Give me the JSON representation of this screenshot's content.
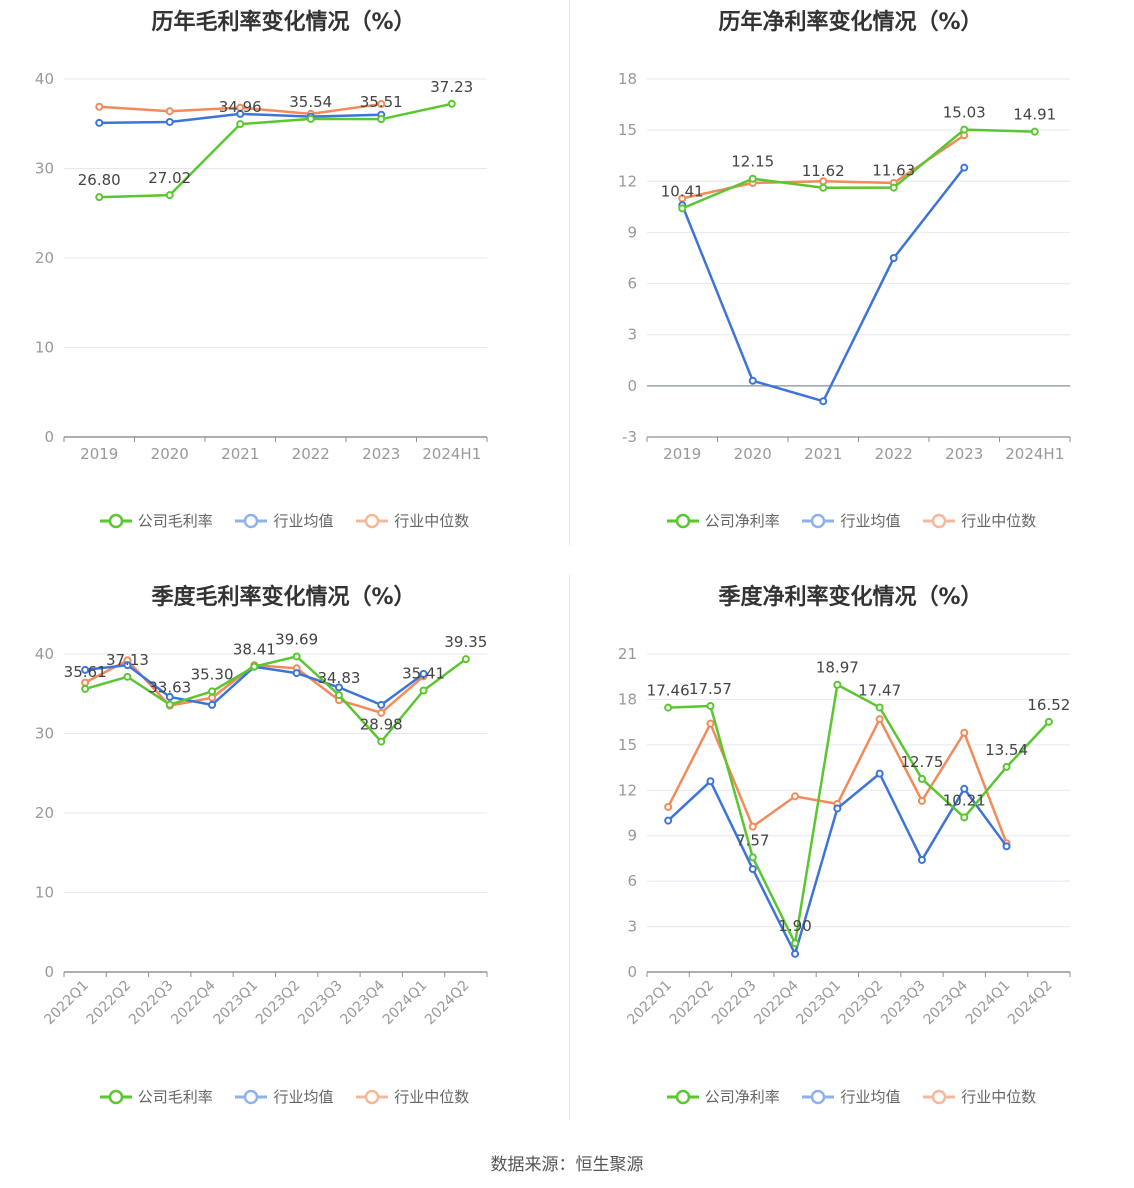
{
  "colors": {
    "company": "#5ac630",
    "avg": "#3d74d9",
    "median": "#f28a5a",
    "grid": "#e6e8f0",
    "axis": "#8a8f99",
    "label": "#999999",
    "value": "#444444"
  },
  "legend_labels": {
    "median": "行业中位数",
    "avg": "行业均值"
  },
  "source": "数据来源：恒生聚源",
  "chart_data": [
    {
      "type": "line",
      "title": "历年毛利率变化情况（%）",
      "categories": [
        "2019",
        "2020",
        "2021",
        "2022",
        "2023",
        "2024H1"
      ],
      "ylim": [
        0,
        40
      ],
      "yticks": [
        0,
        10,
        20,
        30,
        40
      ],
      "xtick_rotate": false,
      "company_label": "公司毛利率",
      "series": [
        {
          "key": "company",
          "name": "公司毛利率",
          "values": [
            26.8,
            27.02,
            34.96,
            35.54,
            35.51,
            37.23
          ],
          "labels": [
            "26.80",
            "27.02",
            "34.96",
            "35.54",
            "35.51",
            "37.23"
          ]
        },
        {
          "key": "avg",
          "name": "行业均值",
          "values": [
            35.1,
            35.2,
            36.1,
            35.8,
            36.0,
            null
          ]
        },
        {
          "key": "median",
          "name": "行业中位数",
          "values": [
            36.9,
            36.4,
            36.8,
            36.1,
            37.2,
            null
          ]
        }
      ]
    },
    {
      "type": "line",
      "title": "历年净利率变化情况（%）",
      "categories": [
        "2019",
        "2020",
        "2021",
        "2022",
        "2023",
        "2024H1"
      ],
      "ylim": [
        -3,
        18
      ],
      "yticks": [
        -3,
        0,
        3,
        6,
        9,
        12,
        15,
        18
      ],
      "xtick_rotate": false,
      "company_label": "公司净利率",
      "series": [
        {
          "key": "company",
          "name": "公司净利率",
          "values": [
            10.41,
            12.15,
            11.62,
            11.63,
            15.03,
            14.91
          ],
          "labels": [
            "10.41",
            "12.15",
            "11.62",
            "11.63",
            "15.03",
            "14.91"
          ]
        },
        {
          "key": "avg",
          "name": "行业均值",
          "values": [
            10.6,
            0.3,
            -0.9,
            7.5,
            12.8,
            null
          ]
        },
        {
          "key": "median",
          "name": "行业中位数",
          "values": [
            11.0,
            11.9,
            12.0,
            11.9,
            14.7,
            null
          ]
        }
      ]
    },
    {
      "type": "line",
      "title": "季度毛利率变化情况（%）",
      "categories": [
        "2022Q1",
        "2022Q2",
        "2022Q3",
        "2022Q4",
        "2023Q1",
        "2023Q2",
        "2023Q3",
        "2023Q4",
        "2024Q1",
        "2024Q2"
      ],
      "ylim": [
        0,
        40
      ],
      "yticks": [
        0,
        10,
        20,
        30,
        40
      ],
      "xtick_rotate": true,
      "company_label": "公司毛利率",
      "series": [
        {
          "key": "company",
          "name": "公司毛利率",
          "values": [
            35.61,
            37.13,
            33.63,
            35.3,
            38.41,
            39.69,
            34.83,
            28.98,
            35.41,
            39.35
          ],
          "labels": [
            "35.61",
            "37.13",
            "33.63",
            "35.30",
            "38.41",
            "39.69",
            "34.83",
            "28.98",
            "35.41",
            "39.35"
          ]
        },
        {
          "key": "avg",
          "name": "行业均值",
          "values": [
            38.0,
            38.6,
            34.6,
            33.6,
            38.4,
            37.6,
            35.8,
            33.6,
            37.5,
            null
          ]
        },
        {
          "key": "median",
          "name": "行业中位数",
          "values": [
            36.4,
            39.2,
            33.5,
            34.5,
            38.6,
            38.2,
            34.2,
            32.6,
            37.2,
            null
          ]
        }
      ]
    },
    {
      "type": "line",
      "title": "季度净利率变化情况（%）",
      "categories": [
        "2022Q1",
        "2022Q2",
        "2022Q3",
        "2022Q4",
        "2023Q1",
        "2023Q2",
        "2023Q3",
        "2023Q4",
        "2024Q1",
        "2024Q2"
      ],
      "ylim": [
        0,
        21
      ],
      "yticks": [
        0,
        3,
        6,
        9,
        12,
        15,
        18,
        21
      ],
      "xtick_rotate": true,
      "company_label": "公司净利率",
      "series": [
        {
          "key": "company",
          "name": "公司净利率",
          "values": [
            17.46,
            17.57,
            7.57,
            1.9,
            18.97,
            17.47,
            12.75,
            10.21,
            13.54,
            16.52
          ],
          "labels": [
            "17.46",
            "17.57",
            "7.57",
            "1.90",
            "18.97",
            "17.47",
            "12.75",
            "10.21",
            "13.54",
            "16.52"
          ]
        },
        {
          "key": "avg",
          "name": "行业均值",
          "values": [
            10.0,
            12.6,
            6.8,
            1.2,
            10.8,
            13.1,
            7.4,
            12.1,
            8.3,
            null
          ]
        },
        {
          "key": "median",
          "name": "行业中位数",
          "values": [
            10.9,
            16.4,
            9.6,
            11.6,
            11.1,
            16.7,
            11.3,
            15.8,
            8.5,
            null
          ]
        }
      ]
    }
  ]
}
